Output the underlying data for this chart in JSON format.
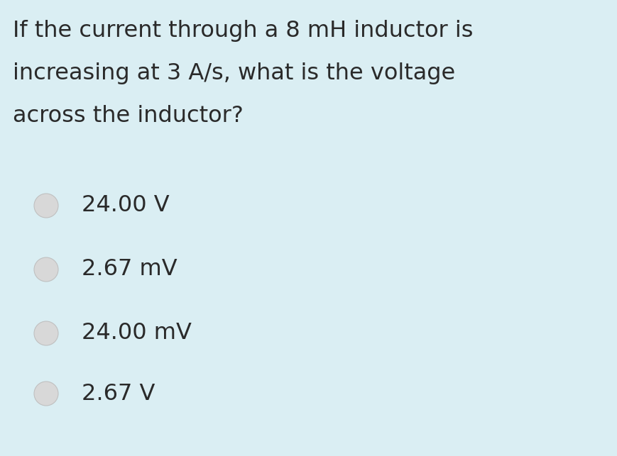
{
  "background_color": "#daeef3",
  "question_text": [
    "If the current through a 8 mH inductor is",
    "increasing at 3 A/s, what is the voltage",
    "across the inductor?"
  ],
  "question_fontsize": 23,
  "question_color": "#2a2a2a",
  "options": [
    "24.00 V",
    "2.67 mV",
    "24.00 mV",
    "2.67 V"
  ],
  "options_fontsize": 23,
  "options_color": "#2a2a2a",
  "radio_fill_color": "#d8d8d8",
  "radio_edge_color": "#c0c0c0",
  "radio_linewidth": 0.8
}
